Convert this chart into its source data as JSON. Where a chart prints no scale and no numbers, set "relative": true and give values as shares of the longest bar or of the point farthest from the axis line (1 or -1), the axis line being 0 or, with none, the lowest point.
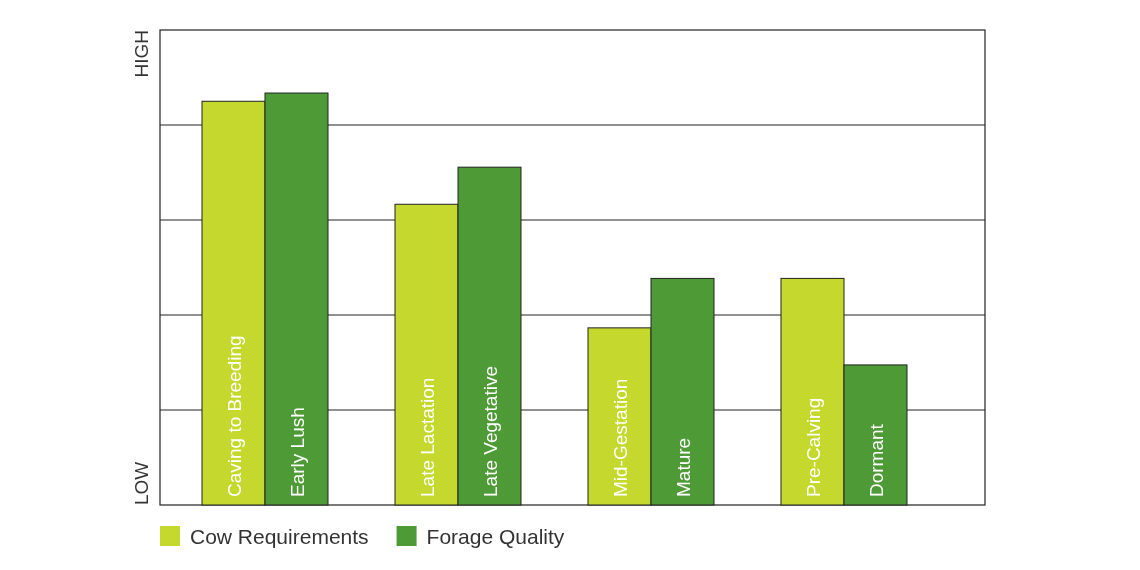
{
  "chart_data": {
    "type": "bar",
    "relative": true,
    "categories": [
      "Caving to Breeding",
      "Early Lush",
      "Late Lactation",
      "Late Vegetative",
      "Mid-Gestation",
      "Mature",
      "Pre-Calving",
      "Dormant"
    ],
    "series": [
      {
        "name": "Cow Requirements",
        "color": "#c5d82e",
        "values": [
          0.98,
          null,
          0.73,
          null,
          0.43,
          null,
          0.55,
          null
        ]
      },
      {
        "name": "Forage Quality",
        "color": "#4e9a36",
        "values": [
          null,
          1,
          null,
          0.82,
          null,
          0.55,
          null,
          0.34
        ]
      }
    ],
    "annotations": [
      "LOW",
      "HIGH"
    ],
    "grid": "y",
    "legend": "bottom left"
  }
}
